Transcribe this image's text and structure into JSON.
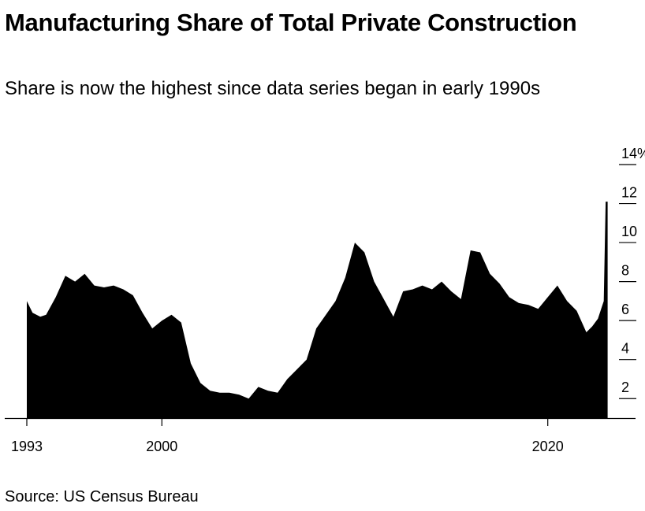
{
  "chart_data": {
    "type": "area",
    "title": "Manufacturing Share of Total Private Construction",
    "subtitle": "Share is now the highest since data series began in early 1990s",
    "source": "Source: US Census Bureau",
    "x_tick_labels": [
      "1993",
      "2000",
      "2020"
    ],
    "y_tick_labels": [
      "2",
      "4",
      "6",
      "8",
      "10",
      "12",
      "14%"
    ],
    "y_ticks": [
      2,
      4,
      6,
      8,
      10,
      12,
      14
    ],
    "x_ticks": [
      1993,
      2000,
      2020
    ],
    "xlim": [
      1993,
      2023.2
    ],
    "ylim": [
      1,
      14
    ],
    "fill_color": "#000000",
    "series": [
      {
        "x": [
          1993.0,
          1993.3,
          1993.7,
          1994.0,
          1994.5,
          1995.0,
          1995.5,
          1996.0,
          1996.5,
          1997.0,
          1997.5,
          1998.0,
          1998.5,
          1999.0,
          1999.5,
          2000.0,
          2000.5,
          2001.0,
          2001.5,
          2002.0,
          2002.5,
          2003.0,
          2003.5,
          2004.0,
          2004.5,
          2005.0,
          2005.5,
          2006.0,
          2006.5,
          2007.0,
          2007.5,
          2008.0,
          2008.5,
          2009.0,
          2009.5,
          2010.0,
          2010.5,
          2011.0,
          2011.5,
          2012.0,
          2012.5,
          2013.0,
          2013.5,
          2014.0,
          2014.5,
          2015.0,
          2015.5,
          2016.0,
          2016.5,
          2017.0,
          2017.5,
          2018.0,
          2018.5,
          2019.0,
          2019.5,
          2020.0,
          2020.5,
          2021.0,
          2021.5,
          2022.0,
          2022.3,
          2022.6,
          2022.9,
          2023.0,
          2023.1
        ],
        "y": [
          7.0,
          6.4,
          6.2,
          6.3,
          7.2,
          8.3,
          8.0,
          8.4,
          7.8,
          7.7,
          7.8,
          7.6,
          7.3,
          6.4,
          5.6,
          6.0,
          6.3,
          5.9,
          3.8,
          2.8,
          2.4,
          2.3,
          2.3,
          2.2,
          2.0,
          2.6,
          2.4,
          2.3,
          3.0,
          3.5,
          4.0,
          5.6,
          6.3,
          7.0,
          8.2,
          10.0,
          9.5,
          8.0,
          7.1,
          6.2,
          7.5,
          7.6,
          7.8,
          7.6,
          8.0,
          7.5,
          7.1,
          9.6,
          9.5,
          8.4,
          7.9,
          7.2,
          6.9,
          6.8,
          6.6,
          7.2,
          7.8,
          7.0,
          6.5,
          5.4,
          5.7,
          6.1,
          7.0,
          12.1,
          12.1
        ]
      }
    ]
  }
}
